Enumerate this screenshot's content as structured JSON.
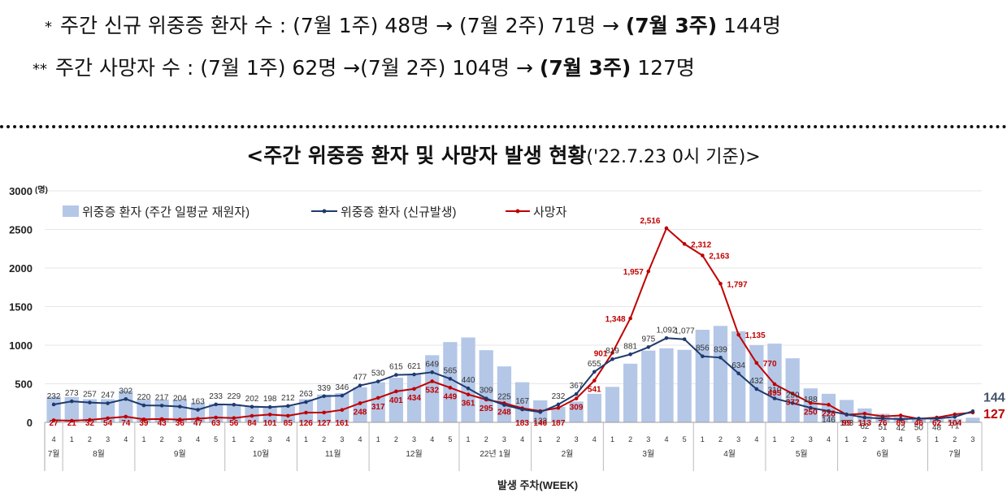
{
  "notes": {
    "line1": {
      "bullet": "*",
      "text": "주간 신규 위중증 환자 수 : (7월 1주) 48명 →  (7월 2주) 71명 →",
      "bold": "(7월 3주)",
      "tail": "144명"
    },
    "line2": {
      "bullet": "**",
      "text": "주간 사망자 수 : (7월 1주) 62명 →(7월 2주) 104명 →",
      "bold": "(7월 3주)",
      "tail": "127명"
    }
  },
  "chart_title": {
    "main": "<주간 위중증 환자 및 사망자 발생 현황",
    "sub": "('22.7.23 0시 기준)>"
  },
  "colors": {
    "bar": "#b4c7e7",
    "line_critical": "#1f3a6e",
    "line_death": "#c00000"
  },
  "chart_data": {
    "type": "bar",
    "title": "",
    "xlabel": "발생 주차(WEEK)",
    "ylabel": "",
    "y_unit": "(명)",
    "ylim": [
      0,
      3000
    ],
    "yticks": [
      0,
      500,
      1000,
      1500,
      2000,
      2500,
      3000
    ],
    "grid": true,
    "legend_position": "top-left",
    "week_labels": [
      "4",
      "1",
      "2",
      "3",
      "4",
      "1",
      "2",
      "3",
      "4",
      "5",
      "1",
      "2",
      "3",
      "4",
      "1",
      "2",
      "3",
      "4",
      "1",
      "2",
      "3",
      "4",
      "5",
      "1",
      "2",
      "3",
      "4",
      "1",
      "2",
      "3",
      "4",
      "1",
      "2",
      "3",
      "4",
      "5",
      "1",
      "2",
      "3",
      "4",
      "1",
      "2",
      "3",
      "4",
      "1",
      "2",
      "3",
      "4",
      "5",
      "1",
      "2",
      "3"
    ],
    "months": [
      {
        "label": "7월",
        "span": 1
      },
      {
        "label": "8월",
        "span": 4
      },
      {
        "label": "9월",
        "span": 5
      },
      {
        "label": "10월",
        "span": 4
      },
      {
        "label": "11월",
        "span": 4
      },
      {
        "label": "12월",
        "span": 5
      },
      {
        "label": "22년 1월",
        "span": 4
      },
      {
        "label": "2월",
        "span": 4
      },
      {
        "label": "3월",
        "span": 5
      },
      {
        "label": "4월",
        "span": 4
      },
      {
        "label": "5월",
        "span": 4
      },
      {
        "label": "6월",
        "span": 5
      },
      {
        "label": "7월",
        "span": 3
      }
    ],
    "series": [
      {
        "name": "위중증 환자 (주간 일평균 재원자)",
        "kind": "bar",
        "values": [
          335,
          330,
          300,
          300,
          410,
          295,
          295,
          295,
          255,
          240,
          235,
          215,
          205,
          210,
          300,
          360,
          380,
          455,
          520,
          580,
          620,
          870,
          1040,
          1100,
          935,
          725,
          520,
          285,
          200,
          270,
          370,
          460,
          760,
          930,
          960,
          940,
          1200,
          1250,
          1180,
          1000,
          1020,
          830,
          440,
          370,
          290,
          180,
          110,
          70,
          55,
          40,
          45,
          60
        ]
      },
      {
        "name": "위중증 환자 (신규발생)",
        "kind": "line",
        "values": [
          232,
          273,
          257,
          247,
          302,
          220,
          217,
          204,
          163,
          233,
          229,
          202,
          198,
          212,
          263,
          339,
          346,
          477,
          530,
          615,
          621,
          649,
          565,
          440,
          309,
          225,
          167,
          133,
          232,
          367,
          655,
          819,
          881,
          975,
          1092,
          1077,
          856,
          839,
          634,
          432,
          310,
          250,
          188,
          146,
          103,
          62,
          51,
          42,
          50,
          48,
          71,
          144
        ]
      },
      {
        "name": "사망자",
        "kind": "line",
        "values": [
          27,
          21,
          32,
          54,
          74,
          39,
          43,
          36,
          47,
          63,
          56,
          84,
          101,
          85,
          126,
          127,
          161,
          248,
          317,
          401,
          434,
          532,
          449,
          361,
          295,
          248,
          183,
          146,
          187,
          309,
          541,
          901,
          1348,
          1957,
          2516,
          2312,
          2163,
          1797,
          1135,
          770,
          495,
          372,
          250,
          228,
          99,
          113,
          76,
          89,
          46,
          62,
          104,
          127
        ]
      }
    ],
    "end_labels": {
      "critical": "144",
      "death": "127"
    }
  }
}
